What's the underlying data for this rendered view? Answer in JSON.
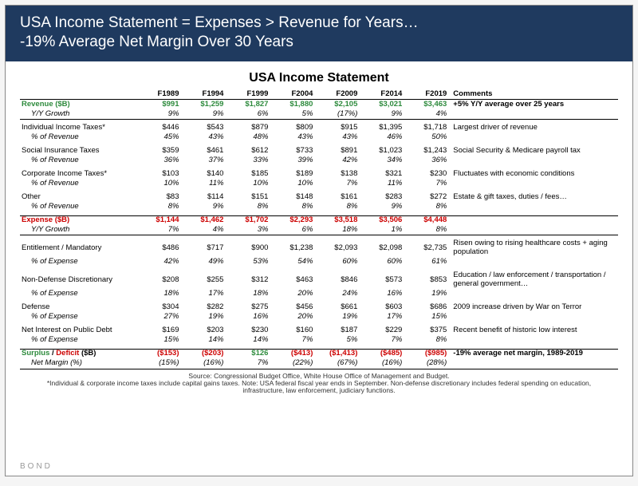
{
  "header": {
    "line1": "USA Income Statement = Expenses > Revenue for Years…",
    "line2": "-19% Average Net Margin Over 30 Years"
  },
  "table_title": "USA Income Statement",
  "years": [
    "F1989",
    "F1994",
    "F1999",
    "F2004",
    "F2009",
    "F2014",
    "F2019"
  ],
  "comments_head": "Comments",
  "revenue": {
    "label": "Revenue ($B)",
    "vals": [
      "$991",
      "$1,259",
      "$1,827",
      "$1,880",
      "$2,105",
      "$3,021",
      "$3,463"
    ],
    "growth_label": "Y/Y Growth",
    "growth": [
      "9%",
      "9%",
      "6%",
      "5%",
      "(17%)",
      "9%",
      "4%"
    ],
    "comment": "+5% Y/Y average over 25 years"
  },
  "rev_items": [
    {
      "label": "Individual Income Taxes*",
      "vals": [
        "$446",
        "$543",
        "$879",
        "$809",
        "$915",
        "$1,395",
        "$1,718"
      ],
      "pct_label": "% of Revenue",
      "pct": [
        "45%",
        "43%",
        "48%",
        "43%",
        "43%",
        "46%",
        "50%"
      ],
      "comment": "Largest driver of revenue"
    },
    {
      "label": "Social Insurance Taxes",
      "vals": [
        "$359",
        "$461",
        "$612",
        "$733",
        "$891",
        "$1,023",
        "$1,243"
      ],
      "pct_label": "% of Revenue",
      "pct": [
        "36%",
        "37%",
        "33%",
        "39%",
        "42%",
        "34%",
        "36%"
      ],
      "comment": "Social Security & Medicare payroll tax"
    },
    {
      "label": "Corporate Income Taxes*",
      "vals": [
        "$103",
        "$140",
        "$185",
        "$189",
        "$138",
        "$321",
        "$230"
      ],
      "pct_label": "% of Revenue",
      "pct": [
        "10%",
        "11%",
        "10%",
        "10%",
        "7%",
        "11%",
        "7%"
      ],
      "comment": "Fluctuates with economic conditions"
    },
    {
      "label": "Other",
      "vals": [
        "$83",
        "$114",
        "$151",
        "$148",
        "$161",
        "$283",
        "$272"
      ],
      "pct_label": "% of Revenue",
      "pct": [
        "8%",
        "9%",
        "8%",
        "8%",
        "8%",
        "9%",
        "8%"
      ],
      "comment": "Estate & gift taxes, duties / fees…"
    }
  ],
  "expense": {
    "label": "Expense ($B)",
    "vals": [
      "$1,144",
      "$1,462",
      "$1,702",
      "$2,293",
      "$3,518",
      "$3,506",
      "$4,448"
    ],
    "growth_label": "Y/Y Growth",
    "growth": [
      "7%",
      "4%",
      "3%",
      "6%",
      "18%",
      "1%",
      "8%"
    ],
    "comment": ""
  },
  "exp_items": [
    {
      "label": "Entitlement / Mandatory",
      "vals": [
        "$486",
        "$717",
        "$900",
        "$1,238",
        "$2,093",
        "$2,098",
        "$2,735"
      ],
      "pct_label": "% of Expense",
      "pct": [
        "42%",
        "49%",
        "53%",
        "54%",
        "60%",
        "60%",
        "61%"
      ],
      "comment": "Risen owing to rising healthcare costs + aging population"
    },
    {
      "label": "Non-Defense Discretionary",
      "vals": [
        "$208",
        "$255",
        "$312",
        "$463",
        "$846",
        "$573",
        "$853"
      ],
      "pct_label": "% of Expense",
      "pct": [
        "18%",
        "17%",
        "18%",
        "20%",
        "24%",
        "16%",
        "19%"
      ],
      "comment": "Education / law enforcement / transportation / general government…"
    },
    {
      "label": "Defense",
      "vals": [
        "$304",
        "$282",
        "$275",
        "$456",
        "$661",
        "$603",
        "$686"
      ],
      "pct_label": "% of Expense",
      "pct": [
        "27%",
        "19%",
        "16%",
        "20%",
        "19%",
        "17%",
        "15%"
      ],
      "comment": "2009 increase driven by War on Terror"
    },
    {
      "label": "Net Interest on Public Debt",
      "vals": [
        "$169",
        "$203",
        "$230",
        "$160",
        "$187",
        "$229",
        "$375"
      ],
      "pct_label": "% of Expense",
      "pct": [
        "15%",
        "14%",
        "14%",
        "7%",
        "5%",
        "7%",
        "8%"
      ],
      "comment": "Recent benefit of historic low interest"
    }
  ],
  "surplus": {
    "label_a": "Surplus",
    "label_b": " / ",
    "label_c": "Deficit",
    "label_d": " ($B)",
    "vals": [
      "($153)",
      "($203)",
      "$126",
      "($413)",
      "($1,413)",
      "($485)",
      "($985)"
    ],
    "val_colors": [
      "red",
      "red",
      "green",
      "red",
      "red",
      "red",
      "red"
    ],
    "margin_label": "Net Margin (%)",
    "margin": [
      "(15%)",
      "(16%)",
      "7%",
      "(22%)",
      "(67%)",
      "(16%)",
      "(28%)"
    ],
    "comment": "-19% average net margin, 1989-2019"
  },
  "footnote": {
    "l1": "Source: Congressional Budget Office, White House Office of Management and Budget.",
    "l2": "*Individual & corporate income taxes include capital gains taxes.  Note: USA federal fiscal year ends in September. Non-defense discretionary includes federal spending on education, infrastructure, law enforcement, judiciary functions."
  },
  "brand": "BOND",
  "colors": {
    "header_bg": "#1f3a5f",
    "green": "#2e8b3d",
    "red": "#cc0000"
  }
}
